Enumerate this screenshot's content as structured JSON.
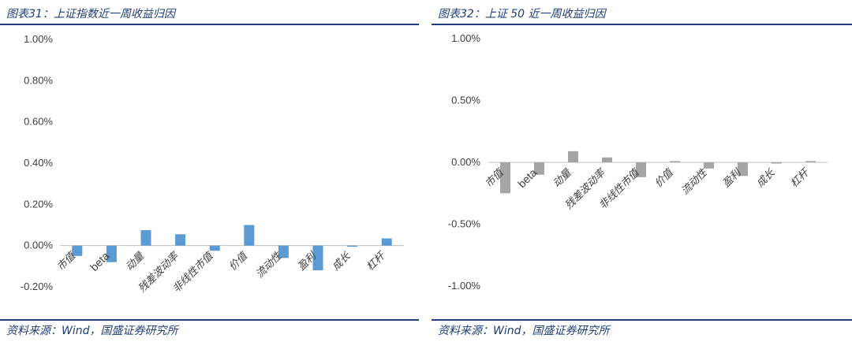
{
  "left": {
    "title": "图表31：上证指数近一周收益归因",
    "source": "资料来源：Wind，国盛证券研究所",
    "chart_data": {
      "type": "bar",
      "categories": [
        "市值",
        "beta",
        "动量",
        "残差波动率",
        "非线性市值",
        "价值",
        "流动性",
        "盈利",
        "成长",
        "杠杆"
      ],
      "values": [
        -0.05,
        -0.08,
        0.075,
        0.055,
        -0.025,
        0.1,
        -0.06,
        -0.12,
        0.0,
        0.035
      ],
      "ylim": [
        -0.2,
        1.0
      ],
      "yticks": [
        1.0,
        0.8,
        0.6,
        0.4,
        0.2,
        0.0,
        -0.2
      ],
      "ytick_labels": [
        "1.00%",
        "0.80%",
        "0.60%",
        "0.40%",
        "0.20%",
        "0.00%",
        "-0.20%"
      ],
      "color": "#5b9bd5",
      "grid": false
    }
  },
  "right": {
    "title": "图表32：上证 50 近一周收益归因",
    "source": "资料来源：Wind，国盛证券研究所",
    "chart_data": {
      "type": "bar",
      "categories": [
        "市值",
        "beta",
        "动量",
        "残差波动率",
        "非线性市值",
        "价值",
        "流动性",
        "盈利",
        "成长",
        "杠杆"
      ],
      "values": [
        -0.25,
        -0.1,
        0.09,
        0.04,
        -0.12,
        0.01,
        -0.05,
        -0.11,
        -0.01,
        0.01
      ],
      "ylim": [
        -1.0,
        1.0
      ],
      "yticks": [
        1.0,
        0.5,
        0.0,
        -0.5,
        -1.0
      ],
      "ytick_labels": [
        "1.00%",
        "0.50%",
        "0.00%",
        "-0.50%",
        "-1.00%"
      ],
      "color": "#a5a5a5",
      "grid": false
    }
  }
}
